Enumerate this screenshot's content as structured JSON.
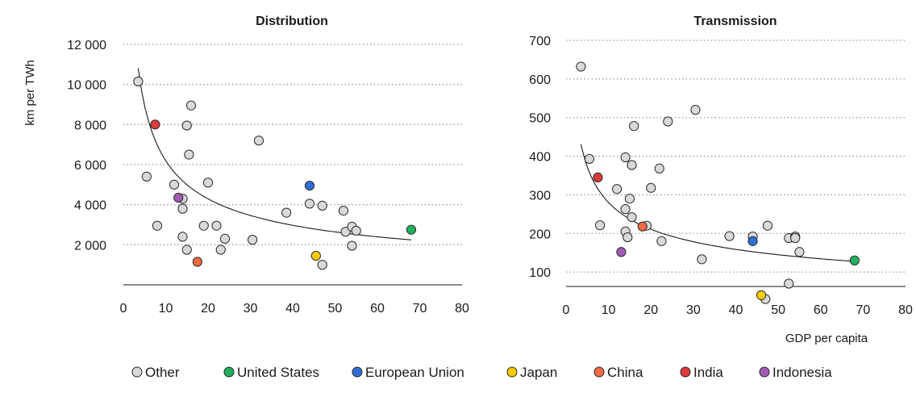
{
  "legend": [
    {
      "name": "Other",
      "color": "#d9d9d9"
    },
    {
      "name": "United States",
      "color": "#22b05e"
    },
    {
      "name": "European Union",
      "color": "#2f6fd6"
    },
    {
      "name": "Japan",
      "color": "#ffcc00"
    },
    {
      "name": "China",
      "color": "#f26b43"
    },
    {
      "name": "India",
      "color": "#d93a3a"
    },
    {
      "name": "Indonesia",
      "color": "#a05bb5"
    }
  ],
  "chart_data": [
    {
      "type": "scatter",
      "title": "Distribution",
      "xlabel": "",
      "ylabel": "km per TWh",
      "xlim": [
        0,
        80
      ],
      "ylim": [
        0,
        12000
      ],
      "xticks": [
        "0",
        "10",
        "20",
        "30",
        "40",
        "50",
        "60",
        "70",
        "80"
      ],
      "yticks": [
        "2 000",
        "4 000",
        "6 000",
        "8 000",
        "10 000",
        "12 000"
      ],
      "ytick_values": [
        2000,
        4000,
        6000,
        8000,
        10000,
        12000
      ],
      "grid": "horizontal dotted",
      "trendline": {
        "a": 21000,
        "b": -0.53,
        "x_from": 3.5,
        "x_to": 68
      },
      "points": [
        {
          "x": 3.5,
          "y": 10150,
          "group": "Other"
        },
        {
          "x": 5.5,
          "y": 5400,
          "group": "Other"
        },
        {
          "x": 8,
          "y": 2950,
          "group": "Other"
        },
        {
          "x": 12,
          "y": 5000,
          "group": "Other"
        },
        {
          "x": 14,
          "y": 4300,
          "group": "Other"
        },
        {
          "x": 14,
          "y": 3800,
          "group": "Other"
        },
        {
          "x": 14,
          "y": 2400,
          "group": "Other"
        },
        {
          "x": 15,
          "y": 7950,
          "group": "Other"
        },
        {
          "x": 15.5,
          "y": 6500,
          "group": "Other"
        },
        {
          "x": 16,
          "y": 8950,
          "group": "Other"
        },
        {
          "x": 15,
          "y": 1750,
          "group": "Other"
        },
        {
          "x": 19,
          "y": 2950,
          "group": "Other"
        },
        {
          "x": 20,
          "y": 5100,
          "group": "Other"
        },
        {
          "x": 22,
          "y": 2950,
          "group": "Other"
        },
        {
          "x": 23,
          "y": 1750,
          "group": "Other"
        },
        {
          "x": 24,
          "y": 2300,
          "group": "Other"
        },
        {
          "x": 30.5,
          "y": 2250,
          "group": "Other"
        },
        {
          "x": 32,
          "y": 7200,
          "group": "Other"
        },
        {
          "x": 38.5,
          "y": 3600,
          "group": "Other"
        },
        {
          "x": 44,
          "y": 4050,
          "group": "Other"
        },
        {
          "x": 47,
          "y": 3950,
          "group": "Other"
        },
        {
          "x": 47,
          "y": 1000,
          "group": "Other"
        },
        {
          "x": 52,
          "y": 3700,
          "group": "Other"
        },
        {
          "x": 52.5,
          "y": 2650,
          "group": "Other"
        },
        {
          "x": 54,
          "y": 2900,
          "group": "Other"
        },
        {
          "x": 55,
          "y": 2700,
          "group": "Other"
        },
        {
          "x": 54,
          "y": 1950,
          "group": "Other"
        },
        {
          "x": 68,
          "y": 2750,
          "group": "United States"
        },
        {
          "x": 44,
          "y": 4950,
          "group": "European Union"
        },
        {
          "x": 45.5,
          "y": 1450,
          "group": "Japan"
        },
        {
          "x": 17.5,
          "y": 1150,
          "group": "China"
        },
        {
          "x": 7.5,
          "y": 8000,
          "group": "India"
        },
        {
          "x": 13,
          "y": 4350,
          "group": "Indonesia"
        }
      ]
    },
    {
      "type": "scatter",
      "title": "Transmission",
      "xlabel": "GDP per capita",
      "ylabel": "",
      "xlim": [
        0,
        80
      ],
      "ylim": [
        0,
        700
      ],
      "xticks": [
        "0",
        "10",
        "20",
        "30",
        "40",
        "50",
        "60",
        "70",
        "80"
      ],
      "yticks": [
        "100",
        "200",
        "300",
        "400",
        "500",
        "600",
        "700"
      ],
      "ytick_values": [
        100,
        200,
        300,
        400,
        500,
        600,
        700
      ],
      "grid": "horizontal dotted",
      "trendline": {
        "a": 720,
        "b": -0.41,
        "x_from": 3.5,
        "x_to": 68
      },
      "points": [
        {
          "x": 3.5,
          "y": 632,
          "group": "Other"
        },
        {
          "x": 5.5,
          "y": 393,
          "group": "Other"
        },
        {
          "x": 8,
          "y": 221,
          "group": "Other"
        },
        {
          "x": 12,
          "y": 315,
          "group": "Other"
        },
        {
          "x": 14,
          "y": 397,
          "group": "Other"
        },
        {
          "x": 14,
          "y": 263,
          "group": "Other"
        },
        {
          "x": 14,
          "y": 205,
          "group": "Other"
        },
        {
          "x": 14.5,
          "y": 190,
          "group": "Other"
        },
        {
          "x": 15,
          "y": 290,
          "group": "Other"
        },
        {
          "x": 15.5,
          "y": 242,
          "group": "Other"
        },
        {
          "x": 15.5,
          "y": 377,
          "group": "Other"
        },
        {
          "x": 16,
          "y": 478,
          "group": "Other"
        },
        {
          "x": 19,
          "y": 220,
          "group": "Other"
        },
        {
          "x": 20,
          "y": 318,
          "group": "Other"
        },
        {
          "x": 22,
          "y": 368,
          "group": "Other"
        },
        {
          "x": 22.5,
          "y": 180,
          "group": "Other"
        },
        {
          "x": 24,
          "y": 490,
          "group": "Other"
        },
        {
          "x": 30.5,
          "y": 520,
          "group": "Other"
        },
        {
          "x": 32,
          "y": 133,
          "group": "Other"
        },
        {
          "x": 38.5,
          "y": 193,
          "group": "Other"
        },
        {
          "x": 44,
          "y": 192,
          "group": "Other"
        },
        {
          "x": 47.5,
          "y": 220,
          "group": "Other"
        },
        {
          "x": 47,
          "y": 30,
          "group": "Other"
        },
        {
          "x": 52.5,
          "y": 188,
          "group": "Other"
        },
        {
          "x": 54,
          "y": 192,
          "group": "Other"
        },
        {
          "x": 54,
          "y": 188,
          "group": "Other"
        },
        {
          "x": 55,
          "y": 152,
          "group": "Other"
        },
        {
          "x": 52.5,
          "y": 70,
          "group": "Other"
        },
        {
          "x": 68,
          "y": 130,
          "group": "United States"
        },
        {
          "x": 44,
          "y": 180,
          "group": "European Union"
        },
        {
          "x": 46,
          "y": 40,
          "group": "Japan"
        },
        {
          "x": 18,
          "y": 218,
          "group": "China"
        },
        {
          "x": 7.5,
          "y": 345,
          "group": "India"
        },
        {
          "x": 13,
          "y": 152,
          "group": "Indonesia"
        }
      ]
    }
  ]
}
